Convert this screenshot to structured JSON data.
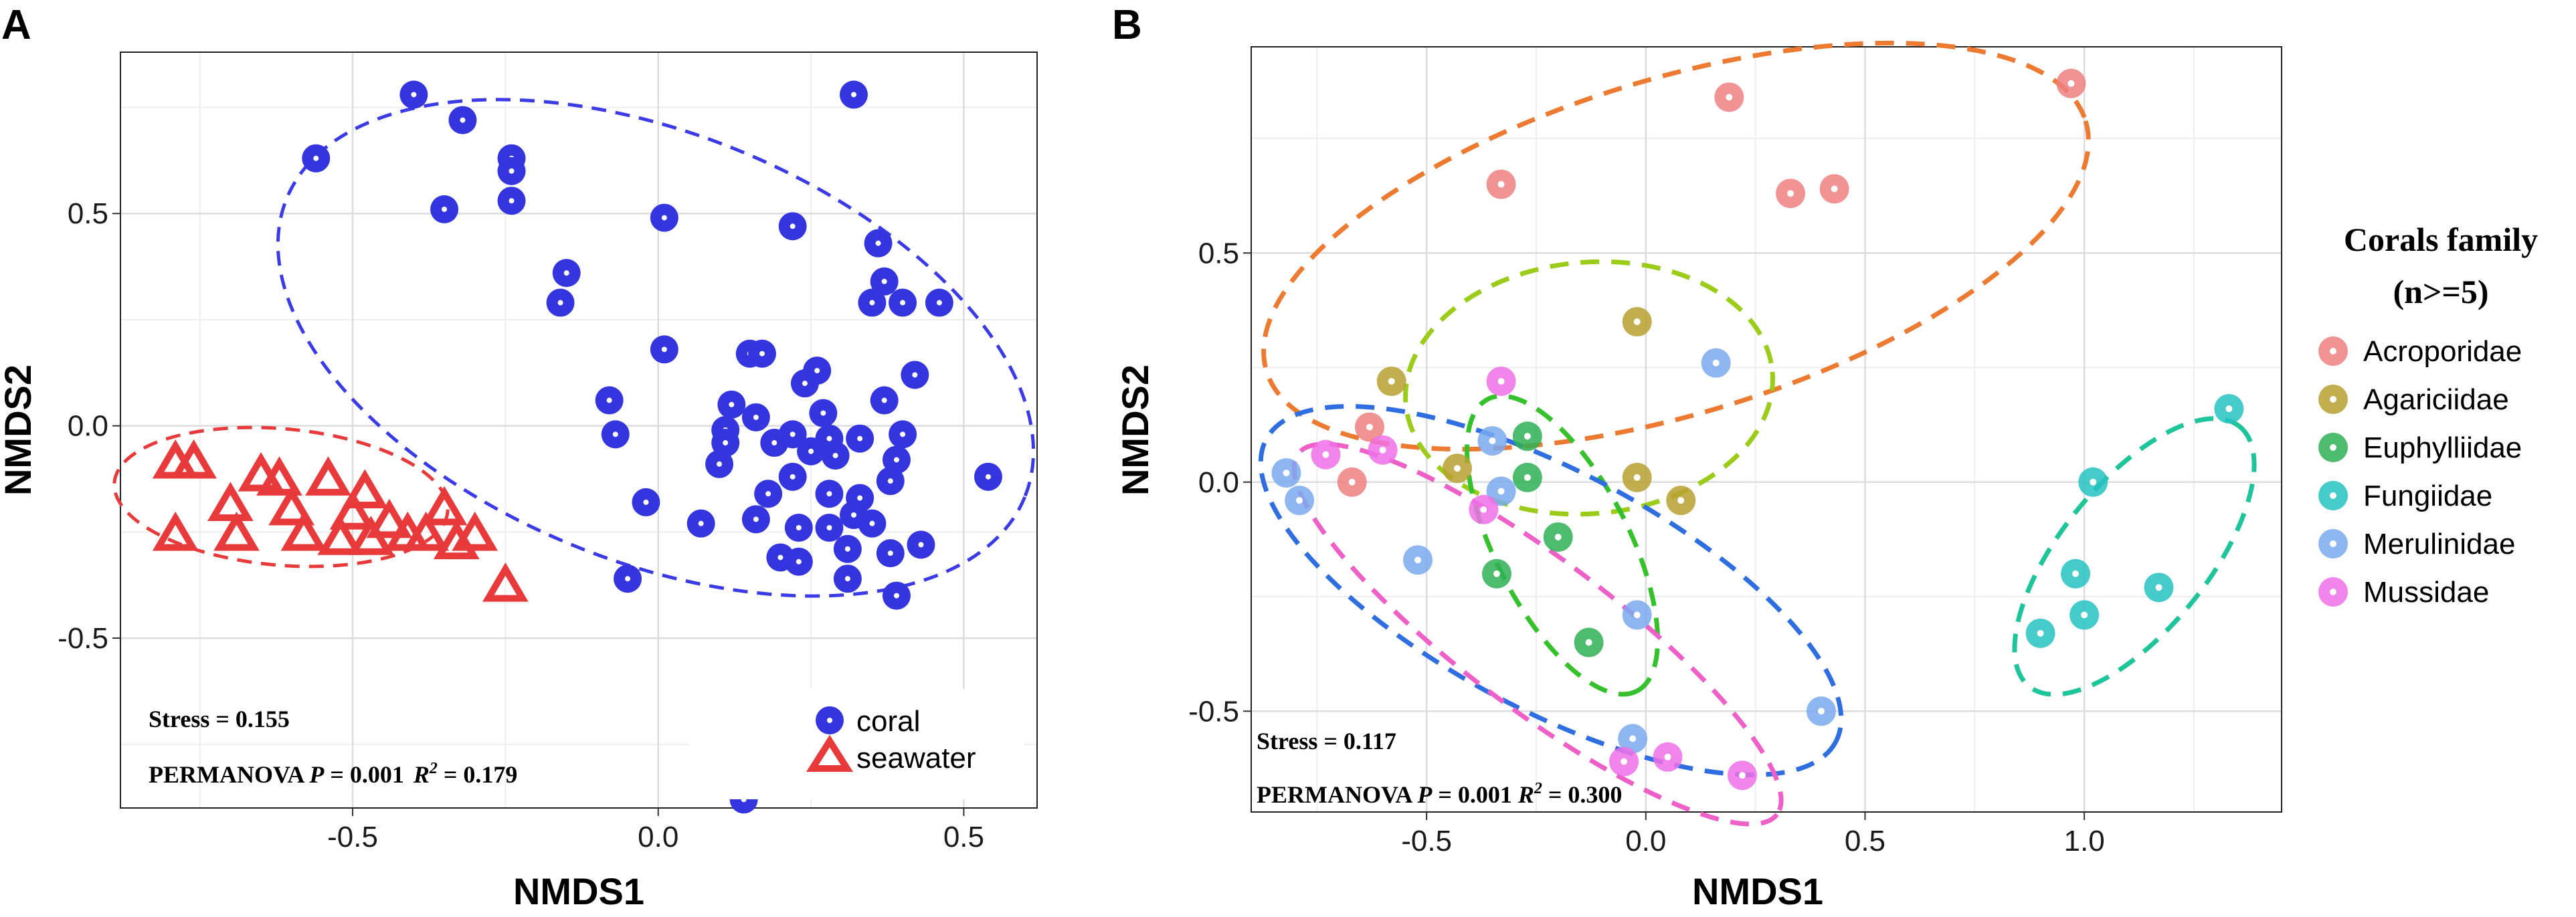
{
  "chart_data": [
    {
      "panel": "A",
      "type": "scatter",
      "xlabel": "NMDS1",
      "ylabel": "NMDS2",
      "xlim": [
        -0.88,
        0.62
      ],
      "ylim": [
        -0.9,
        0.88
      ],
      "xticks": [
        -0.5,
        0.0,
        0.5
      ],
      "xtick_labels": [
        "-0.5",
        "0.0",
        "0.5"
      ],
      "yticks": [
        -0.5,
        0.0,
        0.5
      ],
      "ytick_labels": [
        "-0.5",
        "0.0",
        "0.5"
      ],
      "grid": true,
      "stress_text": "Stress = 0.155",
      "stat_text": {
        "prefix": "PERMANOVA ",
        "p_label": "P",
        "p_value": " = 0.001",
        "r_label": "R",
        "r_sup": "2",
        "r_value": " = 0.179"
      },
      "legend": {
        "position": "bottom-right",
        "entries": [
          {
            "label": "coral",
            "shape": "circle",
            "color": "#3535e0"
          },
          {
            "label": "seawater",
            "shape": "triangle",
            "color": "#e83a3a"
          }
        ]
      },
      "series": [
        {
          "name": "coral",
          "shape": "circle",
          "color": "#3535e0",
          "x": [
            -0.4,
            -0.32,
            -0.56,
            -0.24,
            -0.24,
            -0.24,
            -0.35,
            0.32,
            0.01,
            0.22,
            0.36,
            0.37,
            0.35,
            0.4,
            0.46,
            -0.15,
            -0.16,
            0.01,
            -0.08,
            0.15,
            0.17,
            0.26,
            0.42,
            0.24,
            0.37,
            0.12,
            0.27,
            0.16,
            -0.07,
            0.11,
            0.22,
            0.28,
            0.33,
            0.4,
            0.11,
            0.19,
            0.25,
            0.29,
            0.39,
            0.54,
            -0.02,
            0.1,
            0.18,
            0.22,
            0.28,
            0.33,
            0.38,
            0.07,
            0.16,
            0.23,
            0.28,
            0.32,
            0.35,
            0.43,
            0.2,
            0.23,
            0.31,
            0.38,
            -0.05,
            0.31,
            0.39,
            0.14
          ],
          "y": [
            0.78,
            0.72,
            0.63,
            0.63,
            0.6,
            0.53,
            0.51,
            0.78,
            0.49,
            0.47,
            0.43,
            0.34,
            0.29,
            0.29,
            0.29,
            0.36,
            0.29,
            0.18,
            0.06,
            0.17,
            0.17,
            0.13,
            0.12,
            0.1,
            0.06,
            0.05,
            0.03,
            0.02,
            -0.02,
            -0.01,
            -0.02,
            -0.03,
            -0.03,
            -0.02,
            -0.04,
            -0.04,
            -0.06,
            -0.07,
            -0.08,
            -0.12,
            -0.18,
            -0.09,
            -0.16,
            -0.12,
            -0.16,
            -0.17,
            -0.13,
            -0.23,
            -0.22,
            -0.24,
            -0.24,
            -0.21,
            -0.23,
            -0.28,
            -0.31,
            -0.32,
            -0.29,
            -0.3,
            -0.36,
            -0.36,
            -0.4,
            -0.88
          ]
        },
        {
          "name": "seawater",
          "shape": "triangle",
          "color": "#e83a3a",
          "x": [
            -0.79,
            -0.76,
            -0.65,
            -0.62,
            -0.54,
            -0.48,
            -0.7,
            -0.6,
            -0.5,
            -0.44,
            -0.35,
            -0.3,
            -0.79,
            -0.69,
            -0.58,
            -0.52,
            -0.47,
            -0.41,
            -0.38,
            -0.33,
            -0.25
          ],
          "y": [
            -0.09,
            -0.09,
            -0.12,
            -0.13,
            -0.13,
            -0.16,
            -0.19,
            -0.2,
            -0.21,
            -0.23,
            -0.2,
            -0.26,
            -0.26,
            -0.26,
            -0.26,
            -0.27,
            -0.27,
            -0.26,
            -0.26,
            -0.28,
            -0.38
          ]
        }
      ],
      "ellipses": [
        {
          "group": "coral",
          "color": "#3a3ae6"
        },
        {
          "group": "seawater",
          "color": "#e83a3a"
        }
      ]
    },
    {
      "panel": "B",
      "type": "scatter",
      "xlabel": "NMDS1",
      "ylabel": "NMDS2",
      "xlim": [
        -0.9,
        1.45
      ],
      "ylim": [
        -0.72,
        0.95
      ],
      "xticks": [
        -0.5,
        0.0,
        0.5,
        1.0
      ],
      "xtick_labels": [
        "-0.5",
        "0.0",
        "0.5",
        "1.0"
      ],
      "yticks": [
        -0.5,
        0.0,
        0.5
      ],
      "ytick_labels": [
        "-0.5",
        "0.0",
        "0.5"
      ],
      "grid": true,
      "stress_text": "Stress = 0.117",
      "stat_text": {
        "prefix": "PERMANOVA ",
        "p_label": "P",
        "p_value": " = 0.001 ",
        "r_label": "R",
        "r_sup": "2",
        "r_value": " = 0.300"
      },
      "legend": {
        "position": "right",
        "title_line1": "Corals family",
        "title_line2": "(n>=5)",
        "entries": [
          {
            "label": "Acroporidae",
            "color": "#f08080"
          },
          {
            "label": "Agariciidae",
            "color": "#b8a030"
          },
          {
            "label": "Euphylliidae",
            "color": "#2eb055"
          },
          {
            "label": "Fungiidae",
            "color": "#26c2c2"
          },
          {
            "label": "Merulinidae",
            "color": "#7aaaf0"
          },
          {
            "label": "Mussidae",
            "color": "#f070e8"
          }
        ]
      },
      "series": [
        {
          "name": "Acroporidae",
          "color": "#f08080",
          "x": [
            -0.33,
            0.19,
            0.33,
            0.43,
            0.97,
            -0.63,
            -0.67
          ],
          "y": [
            0.65,
            0.84,
            0.63,
            0.64,
            0.87,
            0.12,
            0.0
          ]
        },
        {
          "name": "Agariciidae",
          "color": "#b8a030",
          "x": [
            -0.02,
            -0.58,
            -0.43,
            -0.02,
            0.08
          ],
          "y": [
            0.35,
            0.22,
            0.03,
            0.01,
            -0.04
          ]
        },
        {
          "name": "Euphylliidae",
          "color": "#2eb055",
          "x": [
            -0.27,
            -0.27,
            -0.2,
            -0.34,
            -0.13
          ],
          "y": [
            0.1,
            0.01,
            -0.12,
            -0.2,
            -0.35
          ]
        },
        {
          "name": "Fungiidae",
          "color": "#26c2c2",
          "x": [
            1.33,
            1.02,
            0.98,
            1.0,
            1.17,
            0.9
          ],
          "y": [
            0.16,
            0.0,
            -0.2,
            -0.29,
            -0.23,
            -0.33
          ]
        },
        {
          "name": "Merulinidae",
          "color": "#7aaaf0",
          "x": [
            0.16,
            -0.82,
            -0.79,
            -0.35,
            -0.33,
            -0.52,
            -0.02,
            0.4,
            -0.03
          ],
          "y": [
            0.26,
            0.02,
            -0.04,
            0.09,
            -0.02,
            -0.17,
            -0.29,
            -0.5,
            -0.56
          ]
        },
        {
          "name": "Mussidae",
          "color": "#f070e8",
          "x": [
            -0.33,
            -0.73,
            -0.6,
            -0.37,
            -0.05,
            0.05,
            0.22
          ],
          "y": [
            0.22,
            0.06,
            0.07,
            -0.06,
            -0.61,
            -0.6,
            -0.64
          ]
        }
      ],
      "ellipses": [
        {
          "group": "Acroporidae",
          "color": "#ec7a30"
        },
        {
          "group": "Agariciidae",
          "color": "#9ccc1a"
        },
        {
          "group": "Euphylliidae",
          "color": "#34c12b"
        },
        {
          "group": "Fungiidae",
          "color": "#1ec49a"
        },
        {
          "group": "Merulinidae",
          "color": "#2f6ee0"
        },
        {
          "group": "Mussidae",
          "color": "#ef5fc8"
        }
      ]
    }
  ]
}
